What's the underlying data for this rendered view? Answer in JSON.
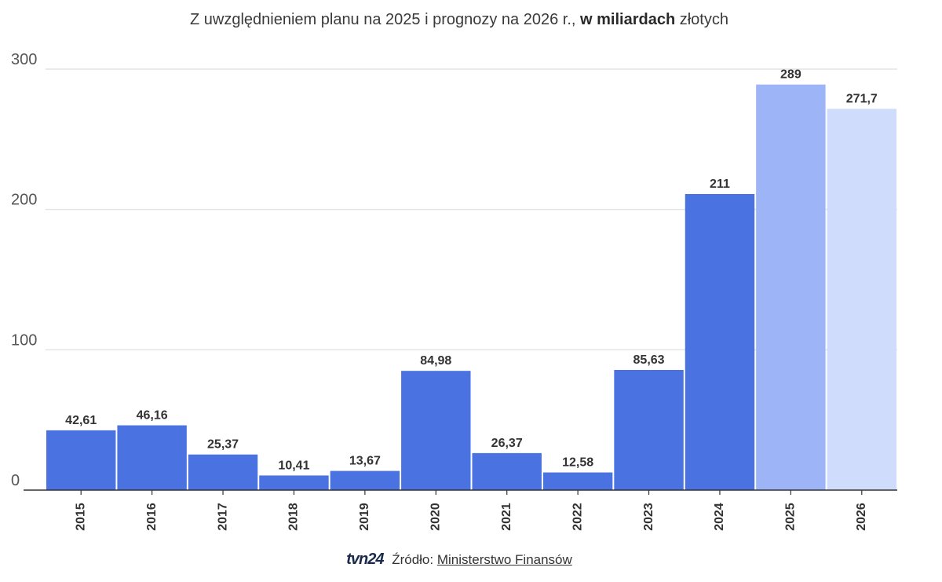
{
  "subtitle": {
    "prefix": "Z uwzględnieniem planu na 2025 i prognozy na 2026 r., ",
    "bold": "w miliardach",
    "suffix": " złotych"
  },
  "footer": {
    "brand": "tvn24",
    "source_label": "Źródło:",
    "source_name": "Ministerstwo Finansów"
  },
  "colors": {
    "actual": "#4a72e0",
    "plan_2025": "#9db5f7",
    "forecast_2026": "#cfdcfb",
    "grid": "#e3e3e3",
    "axis": "#333333"
  },
  "chart_data": {
    "type": "bar",
    "title": "",
    "xlabel": "",
    "ylabel": "",
    "ylim": [
      0,
      300
    ],
    "yticks": [
      0,
      100,
      200,
      300
    ],
    "grid": true,
    "categories": [
      "2015",
      "2016",
      "2017",
      "2018",
      "2019",
      "2020",
      "2021",
      "2022",
      "2023",
      "2024",
      "2025",
      "2026"
    ],
    "values": [
      42.61,
      46.16,
      25.37,
      10.41,
      13.67,
      84.98,
      26.37,
      12.58,
      85.63,
      211,
      289,
      271.7
    ],
    "data_labels": [
      "42,61",
      "46,16",
      "25,37",
      "10,41",
      "13,67",
      "84,98",
      "26,37",
      "12,58",
      "85,63",
      "211",
      "289",
      "271,7"
    ],
    "bar_colors": [
      "actual",
      "actual",
      "actual",
      "actual",
      "actual",
      "actual",
      "actual",
      "actual",
      "actual",
      "actual",
      "plan_2025",
      "forecast_2026"
    ]
  }
}
